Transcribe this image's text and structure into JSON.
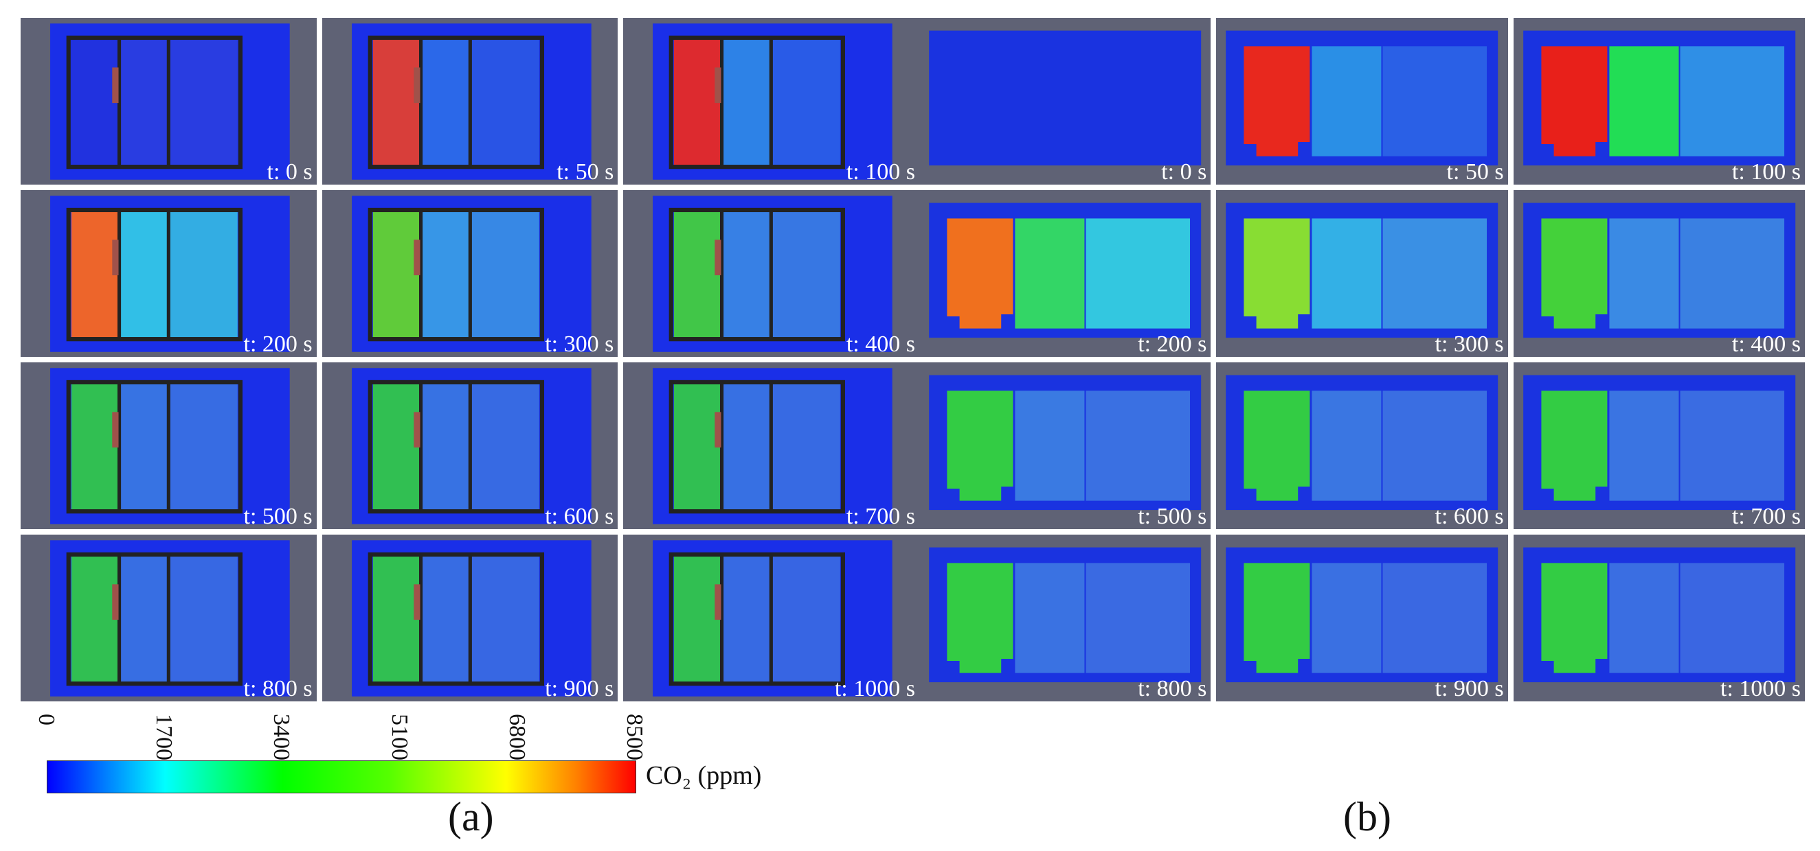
{
  "figure": {
    "panels_a": [
      "t: 0 s",
      "t: 50 s",
      "t: 100 s",
      "t: 200 s",
      "t: 300 s",
      "t: 400 s",
      "t: 500 s",
      "t: 600 s",
      "t: 700 s",
      "t: 800 s",
      "t: 900 s",
      "t: 1000 s"
    ],
    "panels_b": [
      "t: 0 s",
      "t: 50 s",
      "t: 100 s",
      "t: 200 s",
      "t: 300 s",
      "t: 400 s",
      "t: 500 s",
      "t: 600 s",
      "t: 700 s",
      "t: 800 s",
      "t: 900 s",
      "t: 1000 s"
    ],
    "label_a": "(a)",
    "label_b": "(b)"
  },
  "colorbar": {
    "ticks": [
      "0",
      "1700",
      "3400",
      "5100",
      "6800",
      "8500"
    ],
    "unit": "CO₂ (ppm)",
    "colors": [
      "#0000ff",
      "#00ffff",
      "#00ff00",
      "#ffff00",
      "#ff8000",
      "#ff0000"
    ]
  },
  "room_colors": {
    "a": [
      [
        "#2233dd",
        "#2a3fe0",
        "#2a3fe0"
      ],
      [
        "#e8402a",
        "#2d6ee8",
        "#2a58e4"
      ],
      [
        "#ee2a1e",
        "#2f8ae6",
        "#2a60e6"
      ],
      [
        "#ff6a1a",
        "#33cce6",
        "#35b8e2"
      ],
      [
        "#66d92a",
        "#3aa0e6",
        "#3a90e4"
      ],
      [
        "#44d43a",
        "#3a88e4",
        "#3a7ee2"
      ],
      [
        "#33cc44",
        "#3a7ae2",
        "#3a72e2"
      ],
      [
        "#33cc44",
        "#3a78e2",
        "#3a70e2"
      ],
      [
        "#33cc44",
        "#3a76e2",
        "#3a70e2"
      ],
      [
        "#33cc44",
        "#3a74e2",
        "#3a6ee2"
      ],
      [
        "#33cc44",
        "#3a72e2",
        "#3a6ce2"
      ],
      [
        "#33cc44",
        "#3a70e2",
        "#3a6ae2"
      ]
    ],
    "b": [
      [
        "#1533e0",
        "#1533e0",
        "#1533e0"
      ],
      [
        "#e8281e",
        "#2a8fe6",
        "#2a60e6"
      ],
      [
        "#e8201a",
        "#22dd55",
        "#2f8fe6"
      ],
      [
        "#f0701e",
        "#33d666",
        "#33c7e0"
      ],
      [
        "#88dd33",
        "#33b0e6",
        "#3a90e4"
      ],
      [
        "#44d13a",
        "#3a8ae4",
        "#3a80e2"
      ],
      [
        "#33cc44",
        "#3a7ae2",
        "#3a70e2"
      ],
      [
        "#33cc44",
        "#3a76e2",
        "#3a6ee2"
      ],
      [
        "#33cc44",
        "#3a74e2",
        "#3a6ce2"
      ],
      [
        "#33cc44",
        "#3a72e2",
        "#3a6ae2"
      ],
      [
        "#33cc44",
        "#3a70e2",
        "#3a68e2"
      ],
      [
        "#33cc44",
        "#3a6ee2",
        "#3a66e2"
      ]
    ]
  }
}
